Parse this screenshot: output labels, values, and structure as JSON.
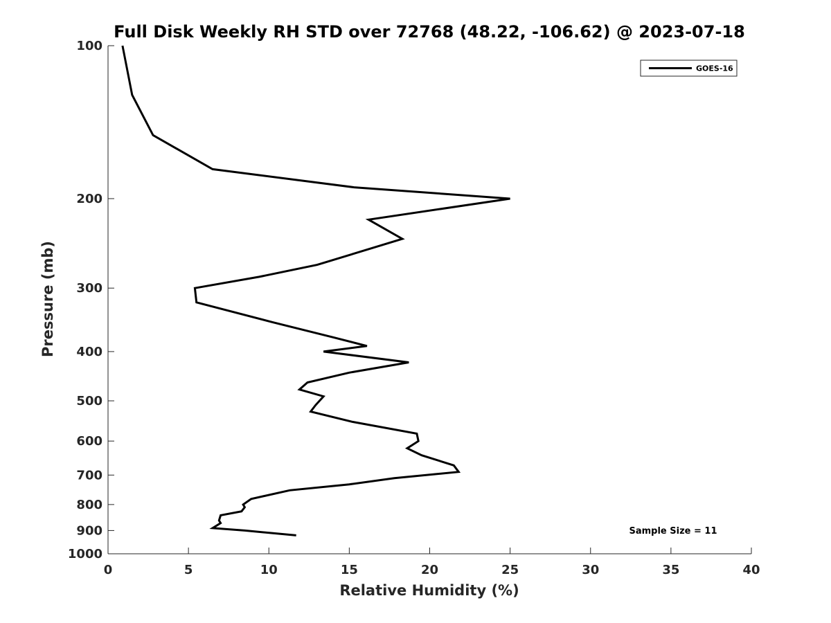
{
  "chart_data": {
    "type": "line",
    "title": "Full Disk Weekly RH STD over 72768 (48.22, -106.62) @ 2023-07-18",
    "xlabel": "Relative Humidity (%)",
    "ylabel": "Pressure (mb)",
    "xlim": [
      0,
      40
    ],
    "ylim": [
      100,
      1000
    ],
    "y_scale": "log",
    "y_reversed": true,
    "x_ticks": [
      "0",
      "5",
      "10",
      "15",
      "20",
      "25",
      "30",
      "35",
      "40"
    ],
    "y_ticks": [
      "100",
      "200",
      "300",
      "400",
      "500",
      "600",
      "700",
      "800",
      "900",
      "1000"
    ],
    "grid": false,
    "legend_position": "top-right",
    "annotation": "Sample Size = 11",
    "series": [
      {
        "name": "GOES-16",
        "color": "#000000",
        "points": [
          [
            0.9,
            100
          ],
          [
            1.5,
            125
          ],
          [
            2.8,
            150
          ],
          [
            6.5,
            175
          ],
          [
            15.3,
            190
          ],
          [
            25.0,
            200
          ],
          [
            16.2,
            220
          ],
          [
            18.3,
            240
          ],
          [
            13.0,
            270
          ],
          [
            9.4,
            285
          ],
          [
            5.4,
            300
          ],
          [
            5.5,
            320
          ],
          [
            10.2,
            350
          ],
          [
            14.0,
            375
          ],
          [
            16.1,
            390
          ],
          [
            13.4,
            400
          ],
          [
            18.7,
            420
          ],
          [
            15.0,
            440
          ],
          [
            12.4,
            460
          ],
          [
            11.9,
            475
          ],
          [
            13.4,
            490
          ],
          [
            12.9,
            510
          ],
          [
            12.6,
            525
          ],
          [
            15.2,
            550
          ],
          [
            19.2,
            580
          ],
          [
            19.3,
            600
          ],
          [
            18.6,
            620
          ],
          [
            19.5,
            640
          ],
          [
            21.5,
            670
          ],
          [
            21.8,
            690
          ],
          [
            17.8,
            710
          ],
          [
            15.0,
            730
          ],
          [
            11.3,
            750
          ],
          [
            8.9,
            780
          ],
          [
            8.4,
            800
          ],
          [
            8.5,
            810
          ],
          [
            8.3,
            825
          ],
          [
            7.0,
            840
          ],
          [
            6.9,
            860
          ],
          [
            7.0,
            870
          ],
          [
            6.5,
            890
          ],
          [
            8.5,
            900
          ],
          [
            11.7,
            920
          ]
        ]
      }
    ]
  }
}
